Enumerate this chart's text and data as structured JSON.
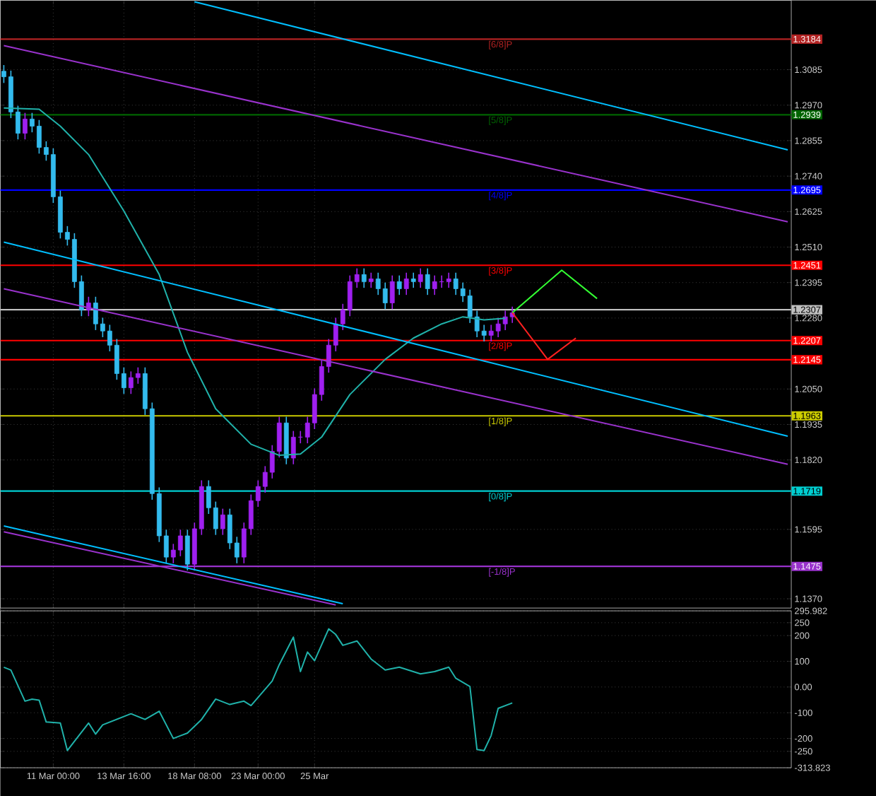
{
  "chart_data": [
    {
      "type": "candlestick",
      "categories": [
        null,
        null,
        null,
        null,
        null,
        null,
        null,
        null,
        null,
        null,
        null,
        null,
        null,
        null,
        null,
        null,
        null,
        null,
        null,
        null,
        null,
        null,
        null,
        null,
        null,
        null,
        null,
        null,
        null,
        null,
        null,
        null,
        null,
        null,
        null,
        null,
        null,
        null,
        null,
        null,
        null,
        null,
        null,
        null,
        null,
        null,
        null,
        null,
        null,
        null,
        null,
        null,
        null,
        null,
        null,
        null,
        null,
        null,
        null,
        null,
        null,
        null,
        null,
        null,
        null,
        null,
        null,
        null,
        null,
        null,
        null,
        null,
        null,
        null,
        null,
        null,
        null,
        null,
        null,
        null,
        null,
        null,
        null,
        null,
        null,
        null,
        null,
        null,
        null,
        null,
        null,
        null,
        null,
        null,
        null,
        null,
        null,
        null,
        null,
        null,
        null,
        null,
        null,
        null,
        null,
        null,
        null,
        null,
        null,
        null,
        null,
        null
      ],
      "ohlc": [
        [
          1.308,
          1.31,
          1.3042,
          1.3062
        ],
        [
          1.3062,
          1.3082,
          1.2928,
          1.2948
        ],
        [
          1.2948,
          1.2968,
          1.2859,
          1.2879
        ],
        [
          1.2879,
          1.2945,
          1.2859,
          1.2925
        ],
        [
          1.2925,
          1.2945,
          1.2882,
          1.2902
        ],
        [
          1.2902,
          1.2922,
          1.2813,
          1.2833
        ],
        [
          1.2833,
          1.2853,
          1.279,
          1.281
        ],
        [
          1.281,
          1.283,
          1.2653,
          1.2673
        ],
        [
          1.2673,
          1.2693,
          1.2538,
          1.2558
        ],
        [
          1.2558,
          1.2578,
          1.2515,
          1.2535
        ],
        [
          1.2535,
          1.2555,
          1.2378,
          1.2398
        ],
        [
          1.2398,
          1.2418,
          1.2286,
          1.2306
        ],
        [
          1.2306,
          1.2349,
          1.2286,
          1.2329
        ],
        [
          1.2329,
          1.2349,
          1.2241,
          1.2261
        ],
        [
          1.2261,
          1.2281,
          1.2218,
          1.2238
        ],
        [
          1.2238,
          1.2258,
          1.2172,
          1.2192
        ],
        [
          1.2192,
          1.2212,
          1.208,
          1.21
        ],
        [
          1.21,
          1.212,
          1.2034,
          1.2054
        ],
        [
          1.2054,
          1.2107,
          1.2034,
          1.2087
        ],
        [
          1.2087,
          1.212,
          1.2067,
          1.21
        ],
        [
          1.21,
          1.212,
          1.1966,
          1.1986
        ],
        [
          1.1986,
          1.2006,
          1.1691,
          1.1711
        ],
        [
          1.1711,
          1.1731,
          1.1554,
          1.1574
        ],
        [
          1.1574,
          1.1594,
          1.1485,
          1.1505
        ],
        [
          1.1505,
          1.1548,
          1.1485,
          1.1528
        ],
        [
          1.1528,
          1.1594,
          1.1508,
          1.1574
        ],
        [
          1.1574,
          1.1594,
          1.1462,
          1.1482
        ],
        [
          1.1482,
          1.1617,
          1.1462,
          1.1597
        ],
        [
          1.1597,
          1.1754,
          1.1577,
          1.1734
        ],
        [
          1.1734,
          1.1754,
          1.1645,
          1.1665
        ],
        [
          1.1665,
          1.1685,
          1.1577,
          1.1597
        ],
        [
          1.1597,
          1.1662,
          1.1577,
          1.1642
        ],
        [
          1.1642,
          1.1662,
          1.1531,
          1.1551
        ],
        [
          1.1551,
          1.1571,
          1.1485,
          1.1505
        ],
        [
          1.1505,
          1.1617,
          1.1485,
          1.1597
        ],
        [
          1.1597,
          1.1708,
          1.1577,
          1.1688
        ],
        [
          1.1688,
          1.1754,
          1.1668,
          1.1734
        ],
        [
          1.1734,
          1.18,
          1.1714,
          1.178
        ],
        [
          1.178,
          1.1868,
          1.176,
          1.1848
        ],
        [
          1.1848,
          1.196,
          1.1828,
          1.194
        ],
        [
          1.194,
          1.196,
          1.1806,
          1.1826
        ],
        [
          1.1826,
          1.1914,
          1.1806,
          1.1894
        ],
        [
          1.1894,
          1.1914,
          1.1874,
          1.1894
        ],
        [
          1.1894,
          1.196,
          1.1874,
          1.194
        ],
        [
          1.194,
          1.2052,
          1.192,
          1.2032
        ],
        [
          1.2032,
          1.2143,
          1.2012,
          1.2123
        ],
        [
          1.2123,
          1.2212,
          1.2103,
          1.2192
        ],
        [
          1.2192,
          1.2281,
          1.2172,
          1.2261
        ],
        [
          1.2261,
          1.2326,
          1.2241,
          1.2306
        ],
        [
          1.2306,
          1.2418,
          1.2286,
          1.2398
        ],
        [
          1.2398,
          1.2441,
          1.2378,
          1.2421
        ],
        [
          1.2421,
          1.2441,
          1.2378,
          1.2398
        ],
        [
          1.2398,
          1.2427,
          1.2378,
          1.2407
        ],
        [
          1.2407,
          1.2427,
          1.2355,
          1.2375
        ],
        [
          1.2375,
          1.2395,
          1.2309,
          1.2329
        ],
        [
          1.2329,
          1.2418,
          1.2309,
          1.2398
        ],
        [
          1.2398,
          1.2418,
          1.2355,
          1.2375
        ],
        [
          1.2375,
          1.2427,
          1.2355,
          1.2407
        ],
        [
          1.2407,
          1.2427,
          1.2378,
          1.2398
        ],
        [
          1.2398,
          1.2441,
          1.2378,
          1.2421
        ],
        [
          1.2421,
          1.2441,
          1.2355,
          1.2375
        ],
        [
          1.2375,
          1.2418,
          1.2355,
          1.2398
        ],
        [
          1.2398,
          1.2418,
          1.2378,
          1.2398
        ],
        [
          1.2398,
          1.2427,
          1.2378,
          1.2407
        ],
        [
          1.2407,
          1.2427,
          1.2355,
          1.2375
        ],
        [
          1.2375,
          1.2395,
          1.2332,
          1.2352
        ],
        [
          1.2352,
          1.2372,
          1.2264,
          1.2284
        ],
        [
          1.2284,
          1.2304,
          1.2218,
          1.2238
        ],
        [
          1.2238,
          1.2258,
          1.2204,
          1.2224
        ],
        [
          1.2224,
          1.2258,
          1.2204,
          1.2238
        ],
        [
          1.2238,
          1.2281,
          1.2218,
          1.2261
        ],
        [
          1.2261,
          1.2304,
          1.2241,
          1.2284
        ],
        [
          1.2284,
          1.2317,
          1.2264,
          1.2297
        ],
        null,
        null,
        null,
        null,
        null,
        null,
        null,
        null,
        null,
        null,
        null,
        null,
        null,
        null,
        null,
        null,
        null,
        null,
        null,
        null,
        null,
        null,
        null,
        null,
        null,
        null,
        null,
        null,
        null,
        null,
        null,
        null,
        null,
        null,
        null,
        null,
        null,
        null,
        null
      ],
      "series": [
        {
          "type": "line",
          "color": "#20b2aa",
          "values": [
            1.2961,
            null,
            null,
            null,
            null,
            1.2957,
            null,
            null,
            1.2902,
            null,
            null,
            null,
            1.281,
            null,
            null,
            null,
            null,
            1.2627,
            null,
            null,
            null,
            null,
            1.2421,
            null,
            null,
            null,
            1.2169,
            null,
            null,
            null,
            1.1986,
            null,
            null,
            null,
            null,
            1.1871,
            null,
            null,
            null,
            1.1835,
            null,
            null,
            1.1839,
            null,
            null,
            1.1894,
            null,
            null,
            null,
            1.2032,
            null,
            null,
            null,
            null,
            1.2146,
            null,
            null,
            null,
            1.2215,
            null,
            null,
            null,
            1.2261,
            null,
            null,
            1.2284,
            null,
            null,
            1.2274,
            null,
            null,
            1.2279,
            null,
            null,
            null,
            null,
            null,
            null,
            null,
            null,
            null,
            null,
            null,
            null,
            null,
            null,
            null,
            null,
            null,
            null,
            null,
            null,
            null,
            null,
            null,
            null,
            null,
            null,
            null,
            null,
            null,
            null,
            null,
            null,
            null,
            null,
            null,
            null,
            null,
            null,
            null,
            null
          ]
        },
        {
          "type": "line",
          "color": "#00bfff",
          "values": [
            null,
            null,
            null,
            null,
            null,
            null,
            null,
            null,
            null,
            null,
            null,
            null,
            null,
            null,
            null,
            null,
            null,
            null,
            null,
            null,
            null,
            null,
            null,
            null,
            null,
            null,
            null,
            1.3305,
            null,
            null,
            null,
            null,
            null,
            null,
            null,
            null,
            null,
            null,
            null,
            null,
            null,
            null,
            null,
            null,
            null,
            null,
            null,
            null,
            null,
            null,
            null,
            null,
            null,
            null,
            null,
            null,
            null,
            null,
            null,
            null,
            null,
            null,
            null,
            null,
            null,
            null,
            null,
            null,
            null,
            null,
            null,
            null,
            null,
            null,
            null,
            null,
            null,
            null,
            null,
            null,
            null,
            null,
            null,
            null,
            null,
            null,
            null,
            null,
            null,
            null,
            null,
            null,
            null,
            null,
            null,
            null,
            null,
            null,
            null,
            null,
            null,
            null,
            null,
            null,
            null,
            null,
            null,
            null,
            null,
            null,
            null,
            1.2825
          ]
        },
        {
          "type": "line",
          "color": "#00bfff",
          "values": [
            1.2526,
            null,
            null,
            null,
            null,
            null,
            null,
            null,
            null,
            null,
            null,
            null,
            null,
            null,
            null,
            null,
            null,
            null,
            null,
            null,
            null,
            null,
            null,
            null,
            null,
            null,
            null,
            null,
            null,
            null,
            null,
            null,
            null,
            null,
            null,
            null,
            null,
            null,
            null,
            null,
            null,
            null,
            null,
            null,
            null,
            null,
            null,
            null,
            null,
            null,
            null,
            null,
            null,
            null,
            null,
            null,
            null,
            null,
            null,
            null,
            null,
            null,
            null,
            null,
            null,
            null,
            null,
            null,
            null,
            null,
            null,
            null,
            null,
            null,
            null,
            null,
            null,
            null,
            null,
            null,
            null,
            null,
            null,
            null,
            null,
            null,
            null,
            null,
            null,
            null,
            null,
            null,
            null,
            null,
            null,
            null,
            null,
            null,
            null,
            null,
            null,
            null,
            null,
            null,
            null,
            null,
            null,
            null,
            null,
            null,
            null,
            1.1897
          ]
        },
        {
          "type": "line",
          "color": "#00bfff",
          "values": [
            1.1606,
            null,
            null,
            null,
            null,
            null,
            null,
            null,
            null,
            null,
            null,
            null,
            null,
            null,
            null,
            null,
            null,
            null,
            null,
            null,
            null,
            null,
            null,
            null,
            null,
            null,
            null,
            null,
            null,
            null,
            null,
            null,
            null,
            null,
            null,
            null,
            null,
            null,
            null,
            null,
            null,
            null,
            null,
            null,
            null,
            null,
            null,
            null,
            1.1354,
            null,
            null,
            null,
            null,
            null,
            null,
            null,
            null,
            null,
            null,
            null,
            null,
            null,
            null,
            null,
            null,
            null,
            null,
            null,
            null,
            null,
            null,
            null,
            null,
            null,
            null,
            null,
            null,
            null,
            null,
            null,
            null,
            null,
            null,
            null,
            null,
            null,
            null,
            null,
            null,
            null,
            null,
            null,
            null,
            null,
            null,
            null,
            null,
            null,
            null,
            null,
            null,
            null,
            null,
            null,
            null,
            null,
            null,
            null,
            null,
            null,
            null,
            null
          ]
        },
        {
          "type": "line",
          "color": "#9932cc",
          "values": [
            1.3163,
            null,
            null,
            null,
            null,
            null,
            null,
            null,
            null,
            null,
            null,
            null,
            null,
            null,
            null,
            null,
            null,
            null,
            null,
            null,
            null,
            null,
            null,
            null,
            null,
            null,
            null,
            null,
            null,
            null,
            null,
            null,
            null,
            null,
            null,
            null,
            null,
            null,
            null,
            null,
            null,
            null,
            null,
            null,
            null,
            null,
            null,
            null,
            null,
            null,
            null,
            null,
            null,
            null,
            null,
            null,
            null,
            null,
            null,
            null,
            null,
            null,
            null,
            null,
            null,
            null,
            null,
            null,
            null,
            null,
            null,
            null,
            null,
            null,
            null,
            null,
            null,
            null,
            null,
            null,
            null,
            null,
            null,
            null,
            null,
            null,
            null,
            null,
            null,
            null,
            null,
            null,
            null,
            null,
            null,
            null,
            null,
            null,
            null,
            null,
            null,
            null,
            null,
            null,
            null,
            null,
            null,
            null,
            null,
            null,
            null,
            1.2592
          ]
        },
        {
          "type": "line",
          "color": "#9932cc",
          "values": [
            1.2375,
            null,
            null,
            null,
            null,
            null,
            null,
            null,
            null,
            null,
            null,
            null,
            null,
            null,
            null,
            null,
            null,
            null,
            null,
            null,
            null,
            null,
            null,
            null,
            null,
            null,
            null,
            null,
            null,
            null,
            null,
            null,
            null,
            null,
            null,
            null,
            null,
            null,
            null,
            null,
            null,
            null,
            null,
            null,
            null,
            null,
            null,
            null,
            null,
            null,
            null,
            null,
            null,
            null,
            null,
            null,
            null,
            null,
            null,
            null,
            null,
            null,
            null,
            null,
            null,
            null,
            null,
            null,
            null,
            null,
            null,
            null,
            null,
            null,
            null,
            null,
            null,
            null,
            null,
            null,
            null,
            null,
            null,
            null,
            null,
            null,
            null,
            null,
            null,
            null,
            null,
            null,
            null,
            null,
            null,
            null,
            null,
            null,
            null,
            null,
            null,
            null,
            null,
            null,
            null,
            null,
            null,
            null,
            null,
            null,
            null,
            1.1806
          ]
        },
        {
          "type": "line",
          "color": "#9932cc",
          "values": [
            1.1587,
            null,
            null,
            null,
            null,
            null,
            null,
            null,
            null,
            null,
            null,
            null,
            null,
            null,
            null,
            null,
            null,
            null,
            null,
            null,
            null,
            null,
            null,
            null,
            null,
            null,
            null,
            null,
            null,
            null,
            null,
            null,
            null,
            null,
            null,
            null,
            null,
            null,
            null,
            null,
            null,
            null,
            null,
            null,
            null,
            null,
            null,
            1.135,
            null,
            null,
            null,
            null,
            null,
            null,
            null,
            null,
            null,
            null,
            null,
            null,
            null,
            null,
            null,
            null,
            null,
            null,
            null,
            null,
            null,
            null,
            null,
            null,
            null,
            null,
            null,
            null,
            null,
            null,
            null,
            null,
            null,
            null,
            null,
            null,
            null,
            null,
            null,
            null,
            null,
            null,
            null,
            null,
            null,
            null,
            null,
            null,
            null,
            null,
            null,
            null,
            null,
            null,
            null,
            null,
            null,
            null,
            null,
            null,
            null,
            null,
            null,
            null
          ]
        },
        {
          "type": "line",
          "color": "#33ff33",
          "values": [
            null,
            null,
            null,
            null,
            null,
            null,
            null,
            null,
            null,
            null,
            null,
            null,
            null,
            null,
            null,
            null,
            null,
            null,
            null,
            null,
            null,
            null,
            null,
            null,
            null,
            null,
            null,
            null,
            null,
            null,
            null,
            null,
            null,
            null,
            null,
            null,
            null,
            null,
            null,
            null,
            null,
            null,
            null,
            null,
            null,
            null,
            null,
            null,
            null,
            null,
            null,
            null,
            null,
            null,
            null,
            null,
            null,
            null,
            null,
            null,
            null,
            null,
            null,
            null,
            null,
            null,
            null,
            null,
            null,
            null,
            null,
            null,
            1.2297,
            null,
            null,
            null,
            null,
            null,
            null,
            1.2435,
            null,
            null,
            null,
            null,
            1.2343,
            null,
            null,
            null,
            null,
            null,
            null,
            null,
            null,
            null,
            null,
            null,
            null,
            null,
            null,
            null,
            null,
            null,
            null,
            null,
            null,
            null,
            null,
            null,
            null,
            null,
            null,
            null
          ]
        },
        {
          "type": "line",
          "color": "#ff2020",
          "values": [
            null,
            null,
            null,
            null,
            null,
            null,
            null,
            null,
            null,
            null,
            null,
            null,
            null,
            null,
            null,
            null,
            null,
            null,
            null,
            null,
            null,
            null,
            null,
            null,
            null,
            null,
            null,
            null,
            null,
            null,
            null,
            null,
            null,
            null,
            null,
            null,
            null,
            null,
            null,
            null,
            null,
            null,
            null,
            null,
            null,
            null,
            null,
            null,
            null,
            null,
            null,
            null,
            null,
            null,
            null,
            null,
            null,
            null,
            null,
            null,
            null,
            null,
            null,
            null,
            null,
            null,
            null,
            null,
            null,
            null,
            null,
            null,
            1.2297,
            null,
            null,
            null,
            null,
            1.2146,
            null,
            null,
            null,
            1.2215,
            null,
            null,
            null,
            null,
            null,
            null,
            null,
            null,
            null,
            null,
            null,
            null,
            null,
            null,
            null,
            null,
            null,
            null,
            null,
            null,
            null,
            null,
            null,
            null,
            null,
            null,
            null,
            null,
            null,
            null
          ]
        }
      ],
      "ylim": [
        1.134,
        1.331
      ],
      "yticks": [
        1.3085,
        {
          "value": 1.297,
          "label": "1.2970"
        },
        1.2855,
        {
          "value": 1.274,
          "label": "1.2740"
        },
        1.2625,
        {
          "value": 1.251,
          "label": "1.2510"
        },
        1.2395,
        {
          "value": 1.228,
          "label": "1.2280"
        },
        {
          "value": 1.205,
          "label": "1.2050"
        },
        1.1935,
        {
          "value": 1.182,
          "label": "1.1820"
        },
        1.1595,
        {
          "value": 1.137,
          "label": "1.1370"
        }
      ],
      "ref_lines": [
        {
          "axis": "y",
          "value": 1.3184,
          "label": "[6/8]P",
          "color": "#b22222"
        },
        {
          "axis": "y",
          "value": 1.2939,
          "label": "[5/8]P",
          "color": "#006400"
        },
        {
          "axis": "y",
          "value": 1.2695,
          "label": "[4/8]P",
          "color": "#0000ff"
        },
        {
          "axis": "y",
          "value": 1.2451,
          "label": "[3/8]P",
          "color": "#ff0000"
        },
        {
          "axis": "y",
          "value": 1.2307,
          "color": "#c0c0c0"
        },
        {
          "axis": "y",
          "value": 1.2207,
          "label": "[2/8]P",
          "color": "#ff0000"
        },
        {
          "axis": "y",
          "value": 1.2145,
          "color": "#ff0000"
        },
        {
          "axis": "y",
          "value": 1.1963,
          "label": "[1/8]P",
          "color": "#cccc00"
        },
        {
          "axis": "y",
          "value": 1.1719,
          "label": "[0/8]P",
          "color": "#00ced1"
        },
        {
          "axis": "y",
          "value": 1.1475,
          "label": "[-1/8]P",
          "color": "#9932cc"
        }
      ],
      "annotations": [
        {
          "text": "1.3184",
          "y": 1.3184
        },
        {
          "text": "1.2939",
          "y": 1.2939
        },
        {
          "text": "1.2695",
          "y": 1.2695
        },
        {
          "text": "1.2451",
          "y": 1.2451
        },
        {
          "text": "1.2307",
          "y": 1.2307
        },
        {
          "text": "1.2207",
          "y": 1.2207
        },
        {
          "text": "1.2145",
          "y": 1.2145
        },
        {
          "text": "1.1963",
          "y": 1.1963
        },
        {
          "text": "1.1719",
          "y": 1.1719
        },
        "1.1475"
      ],
      "grid": true,
      "tick_labels": "y"
    },
    {
      "type": "line",
      "categories": [
        null,
        null,
        null,
        null,
        null,
        null,
        null,
        "11 Mar 00:00",
        null,
        null,
        null,
        null,
        null,
        null,
        null,
        null,
        null,
        "13 Mar 16:00",
        null,
        null,
        null,
        null,
        null,
        null,
        null,
        null,
        null,
        "18 Mar 08:00",
        null,
        null,
        null,
        null,
        null,
        null,
        null,
        null,
        "23 Mar 00:00",
        null,
        null,
        null,
        null,
        null,
        null,
        null,
        "25 Mar",
        null,
        null,
        null,
        null,
        null,
        null,
        null,
        null,
        null,
        null,
        null,
        null,
        null,
        null,
        null,
        null,
        null,
        null,
        null,
        null,
        null,
        null,
        null,
        null,
        null,
        null,
        null,
        null,
        null,
        null,
        null,
        null,
        null,
        null,
        null,
        null,
        null,
        null,
        null,
        null,
        null,
        null,
        null,
        null,
        null,
        null,
        null,
        null,
        null,
        null,
        null,
        null,
        null,
        null,
        null,
        null,
        null,
        null,
        null,
        null,
        null,
        null,
        null,
        null,
        null,
        null,
        null
      ],
      "series": [
        {
          "color": "#20b2aa",
          "values": [
            77,
            66,
            null,
            -55,
            -47,
            -51,
            -136,
            null,
            -140,
            -247,
            -211,
            null,
            -140,
            -183,
            -147,
            null,
            null,
            null,
            -104,
            null,
            -126,
            null,
            -94,
            null,
            -200,
            null,
            -179,
            null,
            -126,
            null,
            -47,
            null,
            -68,
            null,
            -55,
            -72,
            null,
            null,
            23,
            87,
            null,
            194,
            60,
            136,
            102,
            null,
            226,
            204,
            162,
            null,
            179,
            null,
            109,
            null,
            66,
            null,
            77,
            null,
            null,
            51,
            null,
            60,
            null,
            77,
            34,
            null,
            2,
            -243,
            -247,
            -189,
            -83,
            null,
            -62,
            null,
            null,
            null,
            null,
            null,
            null,
            null,
            null,
            null,
            null,
            null,
            null,
            null,
            null,
            null,
            null,
            null,
            null,
            null,
            null,
            null,
            null,
            null,
            null,
            null,
            null,
            null,
            null,
            null,
            null,
            null,
            null,
            null,
            null,
            null,
            null,
            null,
            null,
            null
          ]
        }
      ],
      "ylim": [
        -313.823,
        295.982
      ],
      "yticks": [
        {
          "value": 295.982,
          "label": "295.982"
        },
        250,
        200,
        100,
        {
          "value": 0,
          "label": "0.00"
        },
        -100,
        -200,
        -250,
        {
          "value": -313.823,
          "label": "-313.823"
        }
      ],
      "grid": true
    }
  ]
}
